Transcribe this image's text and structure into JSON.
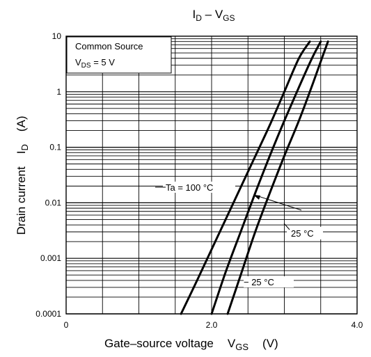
{
  "chart_data": {
    "type": "line",
    "title": "I_D – V_GS",
    "title_parts": {
      "main_a": "I",
      "sub_a": "D",
      "dash": " – ",
      "main_b": "V",
      "sub_b": "GS"
    },
    "xlabel": "Gate–source voltage   V_GS   (V)",
    "xlabel_parts": {
      "text": "Gate–source voltage",
      "sym": "V",
      "sub": "GS",
      "unit": "(V)"
    },
    "ylabel": "Drain current   I_D   (A)",
    "ylabel_parts": {
      "text": "Drain current",
      "sym": "I",
      "sub": "D",
      "unit": "(A)"
    },
    "xlim": [
      0,
      4
    ],
    "ylim": [
      0.0001,
      10
    ],
    "yscale": "log",
    "grid": true,
    "x_ticks": [
      "0",
      "2.0",
      "4.0"
    ],
    "y_ticks": [
      "0.0001",
      "0.001",
      "0.01",
      "0.1",
      "1",
      "10"
    ],
    "conditions": {
      "line1": "Common Source",
      "line2_sym": "V",
      "line2_sub": "DS",
      "line2_rest": " = 5 V"
    },
    "series": [
      {
        "name": "Ta = 100 °C",
        "x": [
          1.58,
          1.8,
          2.05,
          2.3,
          2.55,
          2.8,
          3.0,
          3.2,
          3.35
        ],
        "y": [
          0.0001,
          0.0004,
          0.002,
          0.01,
          0.05,
          0.25,
          1.0,
          4.0,
          8.0
        ]
      },
      {
        "name": "25 °C",
        "x": [
          2.0,
          2.2,
          2.4,
          2.6,
          2.8,
          3.0,
          3.2,
          3.38,
          3.5
        ],
        "y": [
          0.0001,
          0.0006,
          0.003,
          0.015,
          0.07,
          0.3,
          1.2,
          4.0,
          8.0
        ]
      },
      {
        "name": "− 25 °C",
        "x": [
          2.22,
          2.4,
          2.6,
          2.8,
          3.0,
          3.2,
          3.4,
          3.53,
          3.6
        ],
        "y": [
          0.0001,
          0.0005,
          0.003,
          0.015,
          0.07,
          0.3,
          1.5,
          4.5,
          8.0
        ]
      }
    ],
    "annotations": {
      "ta100": "Ta = 100 °C",
      "t25": "25 °C",
      "tm25": "− 25 °C"
    }
  }
}
